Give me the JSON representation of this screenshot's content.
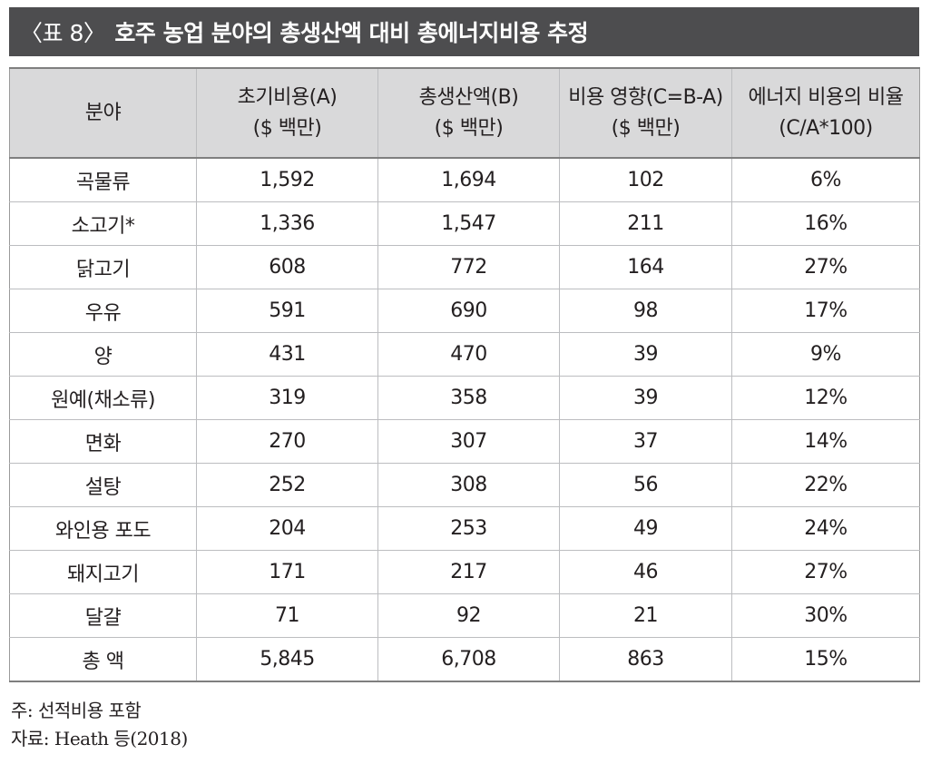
{
  "title": {
    "table_number": "〈표 8〉",
    "text": "호주 농업 분야의 총생산액 대비 총에너지비용 추정"
  },
  "table": {
    "headers": [
      {
        "line1": "분야",
        "line2": ""
      },
      {
        "line1": "초기비용(A)",
        "line2": "($ 백만)"
      },
      {
        "line1": "총생산액(B)",
        "line2": "($ 백만)"
      },
      {
        "line1": "비용 영향(C=B-A)",
        "line2": "($ 백만)"
      },
      {
        "line1": "에너지 비용의 비율",
        "line2": "(C/A*100)"
      }
    ],
    "rows": [
      [
        "곡물류",
        "1,592",
        "1,694",
        "102",
        "6%"
      ],
      [
        "소고기*",
        "1,336",
        "1,547",
        "211",
        "16%"
      ],
      [
        "닭고기",
        "608",
        "772",
        "164",
        "27%"
      ],
      [
        "우유",
        "591",
        "690",
        "98",
        "17%"
      ],
      [
        "양",
        "431",
        "470",
        "39",
        "9%"
      ],
      [
        "원예(채소류)",
        "319",
        "358",
        "39",
        "12%"
      ],
      [
        "면화",
        "270",
        "307",
        "37",
        "14%"
      ],
      [
        "설탕",
        "252",
        "308",
        "56",
        "22%"
      ],
      [
        "와인용 포도",
        "204",
        "253",
        "49",
        "24%"
      ],
      [
        "돼지고기",
        "171",
        "217",
        "46",
        "27%"
      ],
      [
        "달걀",
        "71",
        "92",
        "21",
        "30%"
      ],
      [
        "총 액",
        "5,845",
        "6,708",
        "863",
        "15%"
      ]
    ]
  },
  "notes": {
    "note": "주: 선적비용 포함",
    "source": "자료: Heath 등(2018)"
  }
}
